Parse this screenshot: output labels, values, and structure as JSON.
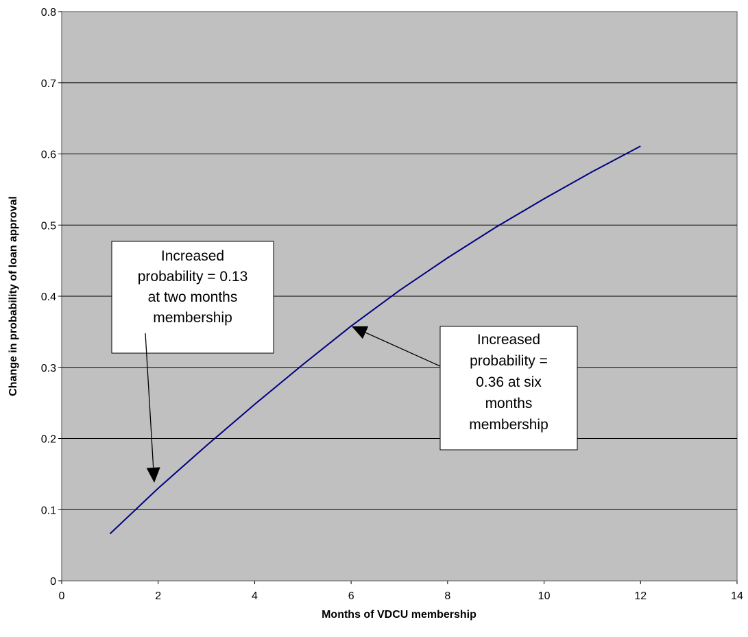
{
  "chart_data": {
    "type": "line",
    "title": "",
    "xlabel": "Months of VDCU membership",
    "ylabel": "Change in probability of loan approval",
    "xlim": [
      0,
      14
    ],
    "ylim": [
      0,
      0.8
    ],
    "x_ticks": [
      0,
      2,
      4,
      6,
      8,
      10,
      12,
      14
    ],
    "y_ticks": [
      0,
      0.1,
      0.2,
      0.3,
      0.4,
      0.5,
      0.6,
      0.7,
      0.8
    ],
    "x_tick_labels": [
      "0",
      "2",
      "4",
      "6",
      "8",
      "10",
      "12",
      "14"
    ],
    "y_tick_labels": [
      "0",
      "0.1",
      "0.2",
      "0.3",
      "0.4",
      "0.5",
      "0.6",
      "0.7",
      "0.8"
    ],
    "grid": "horizontal",
    "series": [
      {
        "x": [
          1,
          2,
          3,
          4,
          5,
          6,
          7,
          8,
          9,
          10,
          11,
          12
        ],
        "y": [
          0.066,
          0.13,
          0.19,
          0.248,
          0.304,
          0.358,
          0.408,
          0.454,
          0.497,
          0.537,
          0.575,
          0.611
        ]
      }
    ],
    "annotations": [
      {
        "lines": [
          "Increased",
          "probability = 0.13",
          "at two months",
          "membership"
        ],
        "target": [
          1.9,
          0.13
        ]
      },
      {
        "lines": [
          "Increased",
          "probability =",
          "0.36 at six",
          "months",
          "membership"
        ],
        "target": [
          6.0,
          0.358
        ]
      }
    ]
  },
  "colors": {
    "plot_background": "#c0c0c0",
    "line": "#000080",
    "gridline": "#000000",
    "annotation_fill": "#ffffff"
  }
}
